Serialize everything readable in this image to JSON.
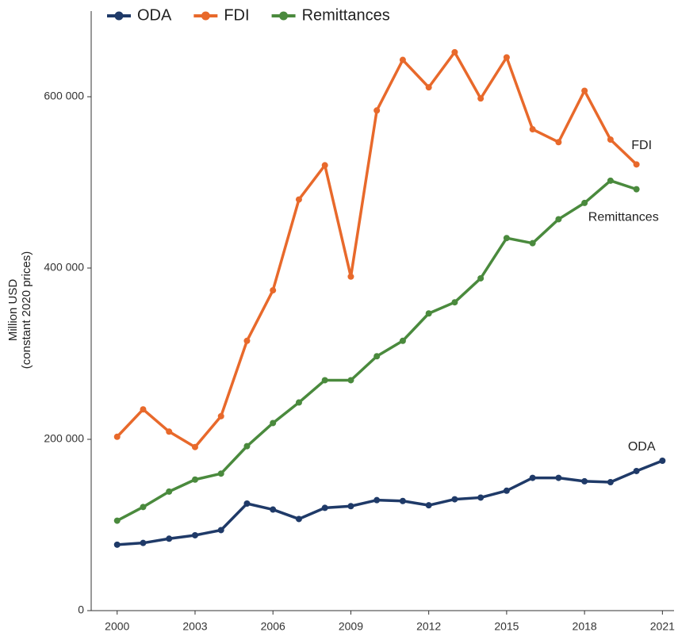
{
  "chart_data": {
    "type": "line",
    "ylabel": [
      "Million USD",
      "(constant 2020 prices)"
    ],
    "x": [
      2000,
      2001,
      2002,
      2003,
      2004,
      2005,
      2006,
      2007,
      2008,
      2009,
      2010,
      2011,
      2012,
      2013,
      2014,
      2015,
      2016,
      2017,
      2018,
      2019,
      2020,
      2021
    ],
    "series": [
      {
        "name": "ODA",
        "color": "#1f3a68",
        "values": [
          77000,
          79000,
          84000,
          88000,
          94000,
          125000,
          118000,
          107000,
          120000,
          122000,
          129000,
          128000,
          123000,
          130000,
          132000,
          140000,
          155000,
          155000,
          151000,
          150000,
          163000,
          175000
        ]
      },
      {
        "name": "FDI",
        "color": "#e8692b",
        "values": [
          203000,
          235000,
          209000,
          191000,
          227000,
          315000,
          374000,
          480000,
          520000,
          390000,
          584000,
          643000,
          611000,
          652000,
          598000,
          646000,
          562000,
          547000,
          607000,
          550000,
          521000,
          null
        ]
      },
      {
        "name": "Remittances",
        "color": "#4a8a3d",
        "values": [
          105000,
          121000,
          139000,
          153000,
          160000,
          192000,
          219000,
          243000,
          269000,
          269000,
          297000,
          315000,
          347000,
          360000,
          388000,
          435000,
          429000,
          457000,
          476000,
          502000,
          492000,
          null
        ]
      }
    ],
    "annotations": [
      {
        "text": "FDI",
        "x": 2020.2,
        "y": 543000
      },
      {
        "text": "Remittances",
        "x": 2019.5,
        "y": 459000
      },
      {
        "text": "ODA",
        "x": 2020.2,
        "y": 191000
      }
    ],
    "xlim": [
      1999,
      2021.6
    ],
    "ylim": [
      0,
      700000
    ],
    "xticks": [
      2000,
      2003,
      2006,
      2009,
      2012,
      2015,
      2018,
      2021
    ],
    "yticks": [
      0,
      {
        "value": 200000,
        "label": "200 000"
      },
      {
        "value": 400000,
        "label": "400 000"
      },
      {
        "value": 600000,
        "label": "600 000"
      }
    ],
    "legend": "top-left",
    "grid": false
  }
}
